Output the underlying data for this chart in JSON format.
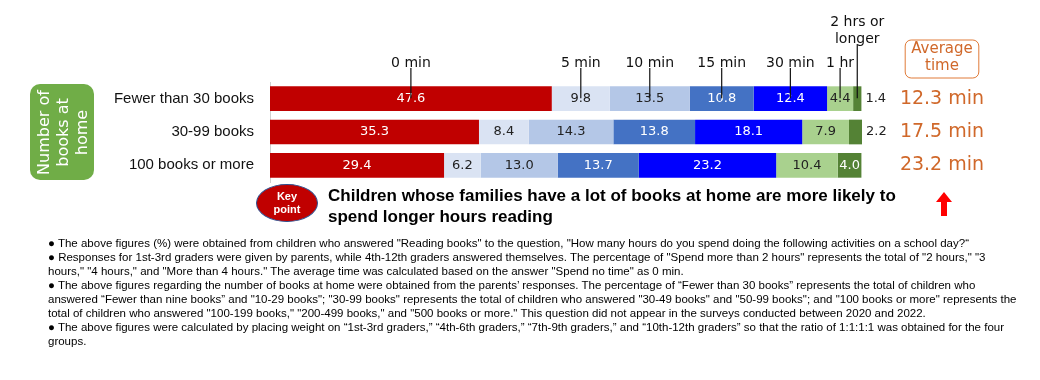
{
  "chart_data": {
    "type": "bar",
    "orientation": "horizontal",
    "stacked": true,
    "ylabel": "Number of books at home",
    "categories": [
      "Fewer than 30 books",
      "30-99 books",
      "100 books or more"
    ],
    "xlim": [
      0,
      100
    ],
    "tick_labels": "y",
    "series": [
      {
        "name": "0 min",
        "color": "#c00000",
        "values": [
          47.6,
          35.3,
          29.4
        ],
        "value_labels": [
          "47.6",
          "35.3",
          "29.4"
        ]
      },
      {
        "name": "5 min",
        "color": "#dae3f3",
        "values": [
          9.8,
          8.4,
          6.2
        ],
        "value_labels": [
          "9.8",
          "8.4",
          "6.2"
        ]
      },
      {
        "name": "10 min",
        "color": "#b4c7e7",
        "values": [
          13.5,
          14.3,
          13.0
        ],
        "value_labels": [
          "13.5",
          "14.3",
          "13.0"
        ]
      },
      {
        "name": "15 min",
        "color": "#4472c4",
        "values": [
          10.8,
          13.8,
          13.7
        ],
        "value_labels": [
          "10.8",
          "13.8",
          "13.7"
        ]
      },
      {
        "name": "30 min",
        "color": "#0000ff",
        "values": [
          12.4,
          18.1,
          23.2
        ],
        "value_labels": [
          "12.4",
          "18.1",
          "23.2"
        ]
      },
      {
        "name": "1 hr",
        "color": "#a9d18e",
        "values": [
          4.4,
          7.9,
          10.4
        ],
        "value_labels": [
          "4.4",
          "7.9",
          "10.4"
        ]
      },
      {
        "name": "2 hrs or longer",
        "color": "#548235",
        "values": [
          1.4,
          2.2,
          4.0
        ],
        "value_labels": [
          "1.4",
          "2.2",
          "4.0"
        ]
      }
    ],
    "annotations": [
      "Average time",
      "12.3 min",
      "17.5 min",
      "23.2 min",
      "Key point",
      "Children whose families have a lot of books at home are more likely to spend longer hours reading",
      "● The above figures (%) were obtained from children who answered \"Reading books\" to the question, \"How many hours do you spend doing the following  activities on a school day?“",
      "● Responses for 1st-3rd graders were given by parents, while 4th-12th graders answered themselves. The percentage of \"Spend more than 2 hours\" represents the total of \"2 hours,\" \"3 hours,\" \"4 hours,\" and \"More than 4 hours.\" The average time was calculated based on the answer \"Spend no time\" as 0 min.",
      "● The above figures regarding the number of books at home were obtained from the parents’ responses. The percentage of “Fewer than 30 books” represents the total of children who answered “Fewer than nine books” and \"10-29 books\"; \"30-99 books\" represents the total of children who answered \"30-49 books\" and \"50-99 books\"; and \"100 books or more\" represents the total of children who answered \"100-199 books,\" \"200-499 books,\" and \"500 books or more.\" This question did not appear in the surveys conducted between 2020 and 2022.",
      "● The above figures were calculated by placing weight on “1st-3rd graders,” “4th-6th graders,” “7th-9th graders,” and “10th-12th graders” so that the ratio of 1:1:1:1 was obtained for the four groups."
    ]
  }
}
